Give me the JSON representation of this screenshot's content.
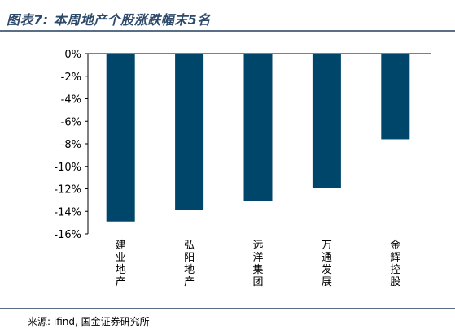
{
  "header": {
    "title": "图表7: 本周地产个股涨跌幅末5名"
  },
  "footer": {
    "source": "来源: ifind, 国金证券研究所"
  },
  "chart_data": {
    "type": "bar",
    "title": "图表7: 本周地产个股涨跌幅末5名",
    "xlabel": "",
    "ylabel": "",
    "categories": [
      "建业地产",
      "弘阳地产",
      "远洋集团",
      "万通发展",
      "金辉控股"
    ],
    "values": [
      -14.9,
      -13.9,
      -13.1,
      -11.9,
      -7.6
    ],
    "ylim": [
      -16,
      0
    ],
    "yticks": [
      "0%",
      "-2%",
      "-4%",
      "-6%",
      "-8%",
      "-10%",
      "-12%",
      "-14%",
      "-16%"
    ],
    "bar_color": "#00466a",
    "grid": false,
    "legend": "none"
  }
}
